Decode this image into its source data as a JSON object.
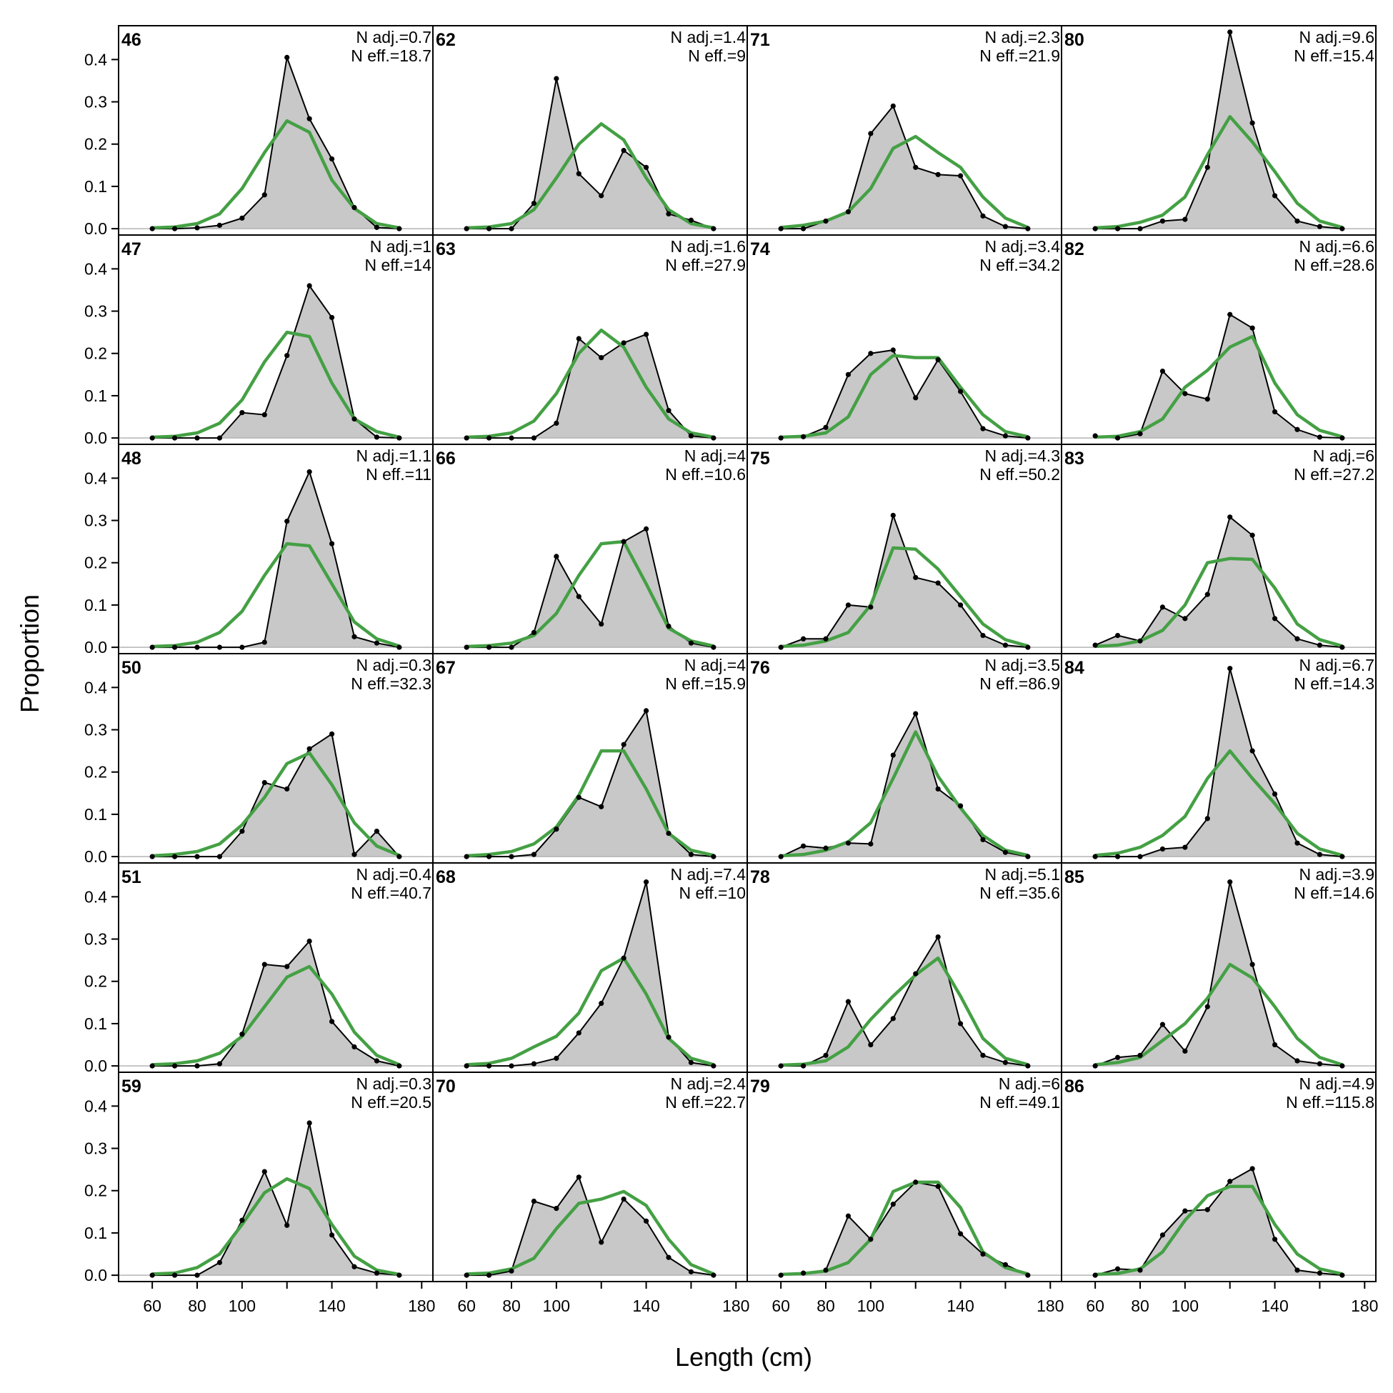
{
  "chart_data": {
    "type": "area",
    "xlabel": "Length (cm)",
    "ylabel": "Proportion",
    "xlim": [
      45,
      185
    ],
    "ylim": [
      -0.015,
      0.48
    ],
    "grid": false,
    "layout": {
      "columns": 4,
      "rows": 6
    },
    "x_tick_values": [
      60,
      80,
      100,
      140,
      180
    ],
    "x_tick_labels": [
      "60",
      "80",
      "100",
      "140",
      "180"
    ],
    "y_tick_values": [
      0.0,
      0.1,
      0.2,
      0.3,
      0.4
    ],
    "y_tick_labels": [
      "0.0",
      "0.1",
      "0.2",
      "0.3",
      "0.4"
    ],
    "x": [
      60,
      70,
      80,
      90,
      100,
      110,
      120,
      130,
      140,
      150,
      160,
      170
    ],
    "colors": {
      "observed_fill": "#c8c8c8",
      "observed_line": "#000000",
      "expected_line": "#44a044",
      "zero_line": "#b4b4b4"
    },
    "panels": [
      {
        "id": "46",
        "n_adj": "N adj.=0.7",
        "n_eff": "N eff.=18.7",
        "observed": [
          0,
          0,
          0.002,
          0.008,
          0.025,
          0.08,
          0.405,
          0.26,
          0.165,
          0.05,
          0.003,
          0
        ],
        "expected": [
          0.002,
          0.004,
          0.012,
          0.035,
          0.095,
          0.18,
          0.255,
          0.228,
          0.115,
          0.048,
          0.012,
          0.002
        ]
      },
      {
        "id": "47",
        "n_adj": "N adj.=1",
        "n_eff": "N eff.=14",
        "observed": [
          0,
          0,
          0,
          0,
          0.06,
          0.055,
          0.195,
          0.36,
          0.285,
          0.045,
          0.002,
          0
        ],
        "expected": [
          0.002,
          0.004,
          0.012,
          0.035,
          0.09,
          0.18,
          0.25,
          0.24,
          0.13,
          0.045,
          0.015,
          0.002
        ]
      },
      {
        "id": "48",
        "n_adj": "N adj.=1.1",
        "n_eff": "N eff.=11",
        "observed": [
          0,
          0,
          0,
          0,
          0,
          0.012,
          0.298,
          0.415,
          0.245,
          0.025,
          0.01,
          0
        ],
        "expected": [
          0.002,
          0.004,
          0.012,
          0.035,
          0.085,
          0.17,
          0.245,
          0.24,
          0.15,
          0.06,
          0.02,
          0.003
        ]
      },
      {
        "id": "50",
        "n_adj": "N adj.=0.3",
        "n_eff": "N eff.=32.3",
        "observed": [
          0,
          0,
          0,
          0,
          0.06,
          0.175,
          0.16,
          0.255,
          0.29,
          0.005,
          0.06,
          0
        ],
        "expected": [
          0.002,
          0.005,
          0.012,
          0.03,
          0.075,
          0.14,
          0.22,
          0.245,
          0.17,
          0.08,
          0.025,
          0.003
        ]
      },
      {
        "id": "51",
        "n_adj": "N adj.=0.4",
        "n_eff": "N eff.=40.7",
        "observed": [
          0,
          0,
          0,
          0.005,
          0.075,
          0.24,
          0.235,
          0.295,
          0.105,
          0.045,
          0.012,
          0
        ],
        "expected": [
          0.003,
          0.005,
          0.012,
          0.03,
          0.07,
          0.14,
          0.21,
          0.235,
          0.17,
          0.08,
          0.025,
          0.003
        ]
      },
      {
        "id": "59",
        "n_adj": "N adj.=0.3",
        "n_eff": "N eff.=20.5",
        "observed": [
          0,
          0,
          0,
          0.03,
          0.13,
          0.245,
          0.118,
          0.36,
          0.095,
          0.02,
          0.005,
          0
        ],
        "expected": [
          0.003,
          0.005,
          0.018,
          0.05,
          0.12,
          0.195,
          0.228,
          0.205,
          0.12,
          0.045,
          0.012,
          0.002
        ]
      },
      {
        "id": "62",
        "n_adj": "N adj.=1.4",
        "n_eff": "N eff.=9",
        "observed": [
          0,
          0,
          0,
          0.06,
          0.355,
          0.13,
          0.078,
          0.185,
          0.145,
          0.035,
          0.02,
          0
        ],
        "expected": [
          0.002,
          0.004,
          0.012,
          0.045,
          0.12,
          0.2,
          0.248,
          0.21,
          0.12,
          0.045,
          0.012,
          0.002
        ]
      },
      {
        "id": "63",
        "n_adj": "N adj.=1.6",
        "n_eff": "N eff.=27.9",
        "observed": [
          0,
          0,
          0,
          0,
          0.035,
          0.235,
          0.19,
          0.225,
          0.245,
          0.065,
          0.005,
          0
        ],
        "expected": [
          0.002,
          0.004,
          0.012,
          0.04,
          0.105,
          0.2,
          0.255,
          0.215,
          0.12,
          0.045,
          0.012,
          0.002
        ]
      },
      {
        "id": "66",
        "n_adj": "N adj.=4",
        "n_eff": "N eff.=10.6",
        "observed": [
          0,
          0,
          0,
          0.035,
          0.215,
          0.12,
          0.055,
          0.25,
          0.28,
          0.05,
          0.01,
          0
        ],
        "expected": [
          0.002,
          0.004,
          0.01,
          0.028,
          0.08,
          0.17,
          0.245,
          0.25,
          0.15,
          0.045,
          0.015,
          0.003
        ]
      },
      {
        "id": "67",
        "n_adj": "N adj.=4",
        "n_eff": "N eff.=15.9",
        "observed": [
          0,
          0,
          0,
          0.005,
          0.065,
          0.14,
          0.118,
          0.265,
          0.345,
          0.055,
          0.005,
          0
        ],
        "expected": [
          0.002,
          0.005,
          0.012,
          0.03,
          0.07,
          0.145,
          0.25,
          0.25,
          0.16,
          0.055,
          0.015,
          0.003
        ]
      },
      {
        "id": "68",
        "n_adj": "N adj.=7.4",
        "n_eff": "N eff.=10",
        "observed": [
          0,
          0,
          0,
          0.005,
          0.018,
          0.078,
          0.148,
          0.255,
          0.435,
          0.068,
          0.008,
          0
        ],
        "expected": [
          0.003,
          0.006,
          0.018,
          0.045,
          0.07,
          0.125,
          0.225,
          0.255,
          0.17,
          0.065,
          0.018,
          0.003
        ]
      },
      {
        "id": "70",
        "n_adj": "N adj.=2.4",
        "n_eff": "N eff.=22.7",
        "observed": [
          0,
          0,
          0.01,
          0.175,
          0.158,
          0.232,
          0.078,
          0.18,
          0.128,
          0.042,
          0.008,
          0
        ],
        "expected": [
          0.003,
          0.005,
          0.015,
          0.04,
          0.11,
          0.17,
          0.18,
          0.198,
          0.165,
          0.085,
          0.025,
          0.003
        ]
      },
      {
        "id": "71",
        "n_adj": "N adj.=2.3",
        "n_eff": "N eff.=21.9",
        "observed": [
          0,
          0,
          0.018,
          0.04,
          0.225,
          0.29,
          0.145,
          0.128,
          0.125,
          0.03,
          0.005,
          0
        ],
        "expected": [
          0.003,
          0.008,
          0.018,
          0.04,
          0.095,
          0.19,
          0.218,
          0.18,
          0.145,
          0.075,
          0.025,
          0.003
        ]
      },
      {
        "id": "74",
        "n_adj": "N adj.=3.4",
        "n_eff": "N eff.=34.2",
        "observed": [
          0,
          0.003,
          0.025,
          0.15,
          0.2,
          0.208,
          0.095,
          0.185,
          0.11,
          0.022,
          0.005,
          0
        ],
        "expected": [
          0.002,
          0.004,
          0.012,
          0.05,
          0.15,
          0.195,
          0.19,
          0.19,
          0.12,
          0.055,
          0.015,
          0.003
        ]
      },
      {
        "id": "75",
        "n_adj": "N adj.=4.3",
        "n_eff": "N eff.=50.2",
        "observed": [
          0,
          0.02,
          0.02,
          0.1,
          0.095,
          0.312,
          0.165,
          0.152,
          0.1,
          0.028,
          0.005,
          0
        ],
        "expected": [
          0.002,
          0.005,
          0.015,
          0.035,
          0.1,
          0.235,
          0.232,
          0.185,
          0.12,
          0.055,
          0.018,
          0.003
        ]
      },
      {
        "id": "76",
        "n_adj": "N adj.=3.5",
        "n_eff": "N eff.=86.9",
        "observed": [
          0,
          0.025,
          0.02,
          0.032,
          0.03,
          0.24,
          0.338,
          0.16,
          0.12,
          0.04,
          0.01,
          0
        ],
        "expected": [
          0.002,
          0.005,
          0.015,
          0.035,
          0.08,
          0.185,
          0.295,
          0.19,
          0.115,
          0.05,
          0.015,
          0.003
        ]
      },
      {
        "id": "78",
        "n_adj": "N adj.=5.1",
        "n_eff": "N eff.=35.6",
        "observed": [
          0,
          0,
          0.025,
          0.152,
          0.05,
          0.112,
          0.218,
          0.305,
          0.1,
          0.025,
          0.008,
          0
        ],
        "expected": [
          0.002,
          0.004,
          0.012,
          0.045,
          0.11,
          0.165,
          0.215,
          0.255,
          0.165,
          0.065,
          0.018,
          0.003
        ]
      },
      {
        "id": "79",
        "n_adj": "N adj.=6",
        "n_eff": "N eff.=49.1",
        "observed": [
          0,
          0.005,
          0.012,
          0.14,
          0.085,
          0.168,
          0.22,
          0.21,
          0.098,
          0.05,
          0.025,
          0
        ],
        "expected": [
          0.002,
          0.004,
          0.01,
          0.03,
          0.085,
          0.198,
          0.22,
          0.22,
          0.16,
          0.055,
          0.018,
          0.003
        ]
      },
      {
        "id": "80",
        "n_adj": "N adj.=9.6",
        "n_eff": "N eff.=15.4",
        "observed": [
          0,
          0,
          0,
          0.018,
          0.022,
          0.145,
          0.465,
          0.25,
          0.078,
          0.018,
          0.005,
          0
        ],
        "expected": [
          0.002,
          0.005,
          0.015,
          0.032,
          0.075,
          0.175,
          0.265,
          0.205,
          0.135,
          0.06,
          0.018,
          0.003
        ]
      },
      {
        "id": "82",
        "n_adj": "N adj.=6.6",
        "n_eff": "N eff.=28.6",
        "observed": [
          0.005,
          0,
          0.01,
          0.158,
          0.105,
          0.092,
          0.292,
          0.26,
          0.062,
          0.02,
          0.002,
          0
        ],
        "expected": [
          0.002,
          0.004,
          0.015,
          0.045,
          0.12,
          0.16,
          0.215,
          0.24,
          0.13,
          0.055,
          0.018,
          0.003
        ]
      },
      {
        "id": "83",
        "n_adj": "N adj.=6",
        "n_eff": "N eff.=27.2",
        "observed": [
          0.005,
          0.028,
          0.015,
          0.095,
          0.068,
          0.125,
          0.308,
          0.265,
          0.068,
          0.02,
          0.005,
          0
        ],
        "expected": [
          0.002,
          0.005,
          0.015,
          0.04,
          0.1,
          0.2,
          0.21,
          0.208,
          0.14,
          0.055,
          0.018,
          0.003
        ]
      },
      {
        "id": "84",
        "n_adj": "N adj.=6.7",
        "n_eff": "N eff.=14.3",
        "observed": [
          0,
          0,
          0,
          0.018,
          0.022,
          0.09,
          0.445,
          0.25,
          0.148,
          0.032,
          0.005,
          0
        ],
        "expected": [
          0.003,
          0.008,
          0.022,
          0.05,
          0.095,
          0.185,
          0.25,
          0.185,
          0.125,
          0.055,
          0.018,
          0.003
        ]
      },
      {
        "id": "85",
        "n_adj": "N adj.=3.9",
        "n_eff": "N eff.=14.6",
        "observed": [
          0,
          0.02,
          0.025,
          0.098,
          0.035,
          0.14,
          0.435,
          0.24,
          0.05,
          0.012,
          0.005,
          0
        ],
        "expected": [
          0.003,
          0.008,
          0.02,
          0.06,
          0.1,
          0.16,
          0.24,
          0.208,
          0.14,
          0.065,
          0.02,
          0.003
        ]
      },
      {
        "id": "86",
        "n_adj": "N adj.=4.9",
        "n_eff": "N eff.=115.8",
        "observed": [
          0,
          0.015,
          0.012,
          0.095,
          0.152,
          0.155,
          0.222,
          0.252,
          0.085,
          0.012,
          0.005,
          0
        ],
        "expected": [
          0.002,
          0.004,
          0.015,
          0.055,
          0.13,
          0.188,
          0.21,
          0.21,
          0.12,
          0.05,
          0.015,
          0.003
        ]
      }
    ]
  }
}
